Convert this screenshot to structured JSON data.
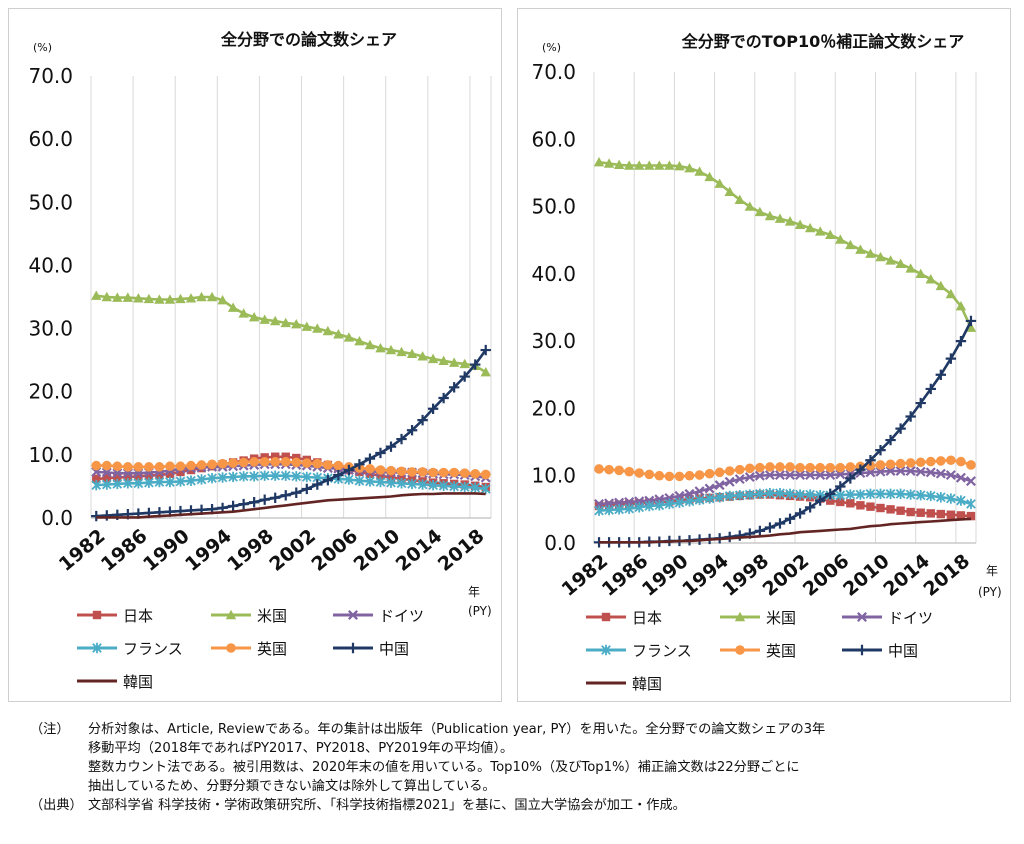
{
  "chart_data": [
    {
      "type": "line",
      "title": "全分野での論文数シェア",
      "unit_label": "(%)",
      "year_label": "年",
      "x_unit": "(PY)",
      "x": [
        1982,
        1983,
        1984,
        1985,
        1986,
        1987,
        1988,
        1989,
        1990,
        1991,
        1992,
        1993,
        1994,
        1995,
        1996,
        1997,
        1998,
        1999,
        2000,
        2001,
        2002,
        2003,
        2004,
        2005,
        2006,
        2007,
        2008,
        2009,
        2010,
        2011,
        2012,
        2013,
        2014,
        2015,
        2016,
        2017,
        2018,
        2019
      ],
      "xticks": [
        1982,
        1986,
        1990,
        1994,
        1998,
        2002,
        2006,
        2010,
        2014,
        2018
      ],
      "ylim": [
        0,
        70
      ],
      "yticks": [
        "0.0",
        "10.0",
        "20.0",
        "30.0",
        "40.0",
        "50.0",
        "60.0",
        "70.0"
      ],
      "grid": "vertical",
      "legend_position": "bottom",
      "series": [
        {
          "name": "日本",
          "color": "#c0504d",
          "marker": "square",
          "values": [
            6.2,
            6.3,
            6.4,
            6.5,
            6.6,
            6.7,
            6.8,
            7.0,
            7.3,
            7.6,
            7.9,
            8.2,
            8.5,
            8.8,
            9.1,
            9.4,
            9.6,
            9.7,
            9.7,
            9.5,
            9.2,
            8.8,
            8.4,
            8.0,
            7.6,
            7.3,
            7.0,
            6.7,
            6.4,
            6.2,
            6.0,
            5.8,
            5.6,
            5.5,
            5.4,
            5.3,
            5.1,
            4.9
          ]
        },
        {
          "name": "米国",
          "color": "#9bbb59",
          "marker": "triangle",
          "values": [
            35.2,
            35.0,
            34.9,
            34.9,
            34.8,
            34.7,
            34.6,
            34.6,
            34.7,
            34.8,
            35.0,
            35.0,
            34.5,
            33.3,
            32.4,
            31.8,
            31.4,
            31.2,
            30.9,
            30.7,
            30.3,
            30.0,
            29.6,
            29.1,
            28.6,
            28.0,
            27.4,
            26.9,
            26.6,
            26.3,
            26.0,
            25.6,
            25.2,
            24.9,
            24.6,
            24.4,
            24.1,
            23.1
          ]
        },
        {
          "name": "ドイツ",
          "color": "#8064a2",
          "marker": "x",
          "values": [
            7.3,
            7.2,
            7.1,
            7.1,
            7.1,
            7.2,
            7.3,
            7.5,
            7.8,
            7.9,
            8.0,
            8.1,
            8.1,
            8.2,
            8.3,
            8.4,
            8.5,
            8.5,
            8.5,
            8.4,
            8.3,
            8.1,
            7.9,
            7.8,
            7.6,
            7.5,
            7.4,
            7.3,
            7.2,
            7.2,
            7.2,
            7.1,
            7.0,
            6.9,
            6.9,
            6.8,
            6.6,
            6.4
          ]
        },
        {
          "name": "フランス",
          "color": "#4bacc6",
          "marker": "asterisk",
          "values": [
            5.2,
            5.3,
            5.4,
            5.5,
            5.5,
            5.6,
            5.7,
            5.7,
            5.8,
            5.9,
            6.1,
            6.3,
            6.4,
            6.5,
            6.6,
            6.6,
            6.7,
            6.7,
            6.7,
            6.6,
            6.5,
            6.4,
            6.3,
            6.2,
            6.1,
            5.9,
            5.8,
            5.7,
            5.6,
            5.5,
            5.4,
            5.3,
            5.2,
            5.1,
            5.0,
            4.9,
            4.8,
            4.6
          ]
        },
        {
          "name": "英国",
          "color": "#f79646",
          "marker": "circle",
          "values": [
            8.3,
            8.3,
            8.2,
            8.1,
            8.1,
            8.1,
            8.1,
            8.2,
            8.2,
            8.3,
            8.4,
            8.5,
            8.6,
            8.7,
            8.8,
            8.9,
            8.9,
            8.9,
            8.9,
            8.8,
            8.7,
            8.6,
            8.4,
            8.3,
            8.1,
            7.9,
            7.8,
            7.6,
            7.5,
            7.4,
            7.3,
            7.3,
            7.2,
            7.2,
            7.2,
            7.1,
            7.0,
            6.9
          ]
        },
        {
          "name": "中国",
          "color": "#1f3864",
          "marker": "plus",
          "values": [
            0.3,
            0.4,
            0.5,
            0.6,
            0.7,
            0.8,
            0.9,
            1.0,
            1.1,
            1.2,
            1.3,
            1.4,
            1.6,
            1.9,
            2.2,
            2.5,
            2.9,
            3.2,
            3.6,
            4.0,
            4.6,
            5.3,
            6.0,
            6.8,
            7.6,
            8.5,
            9.4,
            10.3,
            11.3,
            12.5,
            13.9,
            15.5,
            17.3,
            19.0,
            20.7,
            22.4,
            24.3,
            26.6
          ]
        },
        {
          "name": "韓国",
          "color": "#632523",
          "marker": "none",
          "values": [
            0.1,
            0.1,
            0.1,
            0.1,
            0.1,
            0.2,
            0.3,
            0.4,
            0.5,
            0.6,
            0.7,
            0.8,
            0.9,
            1.0,
            1.2,
            1.4,
            1.6,
            1.8,
            2.0,
            2.2,
            2.4,
            2.6,
            2.8,
            2.9,
            3.0,
            3.1,
            3.2,
            3.3,
            3.4,
            3.6,
            3.7,
            3.8,
            3.8,
            3.9,
            3.9,
            3.9,
            3.9,
            3.8
          ]
        }
      ]
    },
    {
      "type": "line",
      "title": "全分野でのTOP10％補正論文数シェア",
      "unit_label": "(%)",
      "year_label": "年",
      "x_unit": "(PY)",
      "x": [
        1982,
        1983,
        1984,
        1985,
        1986,
        1987,
        1988,
        1989,
        1990,
        1991,
        1992,
        1993,
        1994,
        1995,
        1996,
        1997,
        1998,
        1999,
        2000,
        2001,
        2002,
        2003,
        2004,
        2005,
        2006,
        2007,
        2008,
        2009,
        2010,
        2011,
        2012,
        2013,
        2014,
        2015,
        2016,
        2017,
        2018,
        2019
      ],
      "xticks": [
        1982,
        1986,
        1990,
        1994,
        1998,
        2002,
        2006,
        2010,
        2014,
        2018
      ],
      "ylim": [
        0,
        70
      ],
      "yticks": [
        "0.0",
        "10.0",
        "20.0",
        "30.0",
        "40.0",
        "50.0",
        "60.0",
        "70.0"
      ],
      "grid": "vertical",
      "legend_position": "bottom",
      "series": [
        {
          "name": "日本",
          "color": "#c0504d",
          "marker": "square",
          "values": [
            5.5,
            5.6,
            5.7,
            5.8,
            5.9,
            6.0,
            6.1,
            6.2,
            6.4,
            6.5,
            6.6,
            6.7,
            6.8,
            6.9,
            7.0,
            7.1,
            7.2,
            7.2,
            7.1,
            7.0,
            6.9,
            6.8,
            6.6,
            6.3,
            6.1,
            5.9,
            5.6,
            5.4,
            5.2,
            5.0,
            4.8,
            4.6,
            4.5,
            4.4,
            4.3,
            4.2,
            4.1,
            4.0
          ]
        },
        {
          "name": "米国",
          "color": "#9bbb59",
          "marker": "triangle",
          "values": [
            56.6,
            56.4,
            56.2,
            56.1,
            56.1,
            56.1,
            56.1,
            56.1,
            56.0,
            55.7,
            55.2,
            54.4,
            53.4,
            52.2,
            51.0,
            50.0,
            49.2,
            48.6,
            48.2,
            47.8,
            47.3,
            46.8,
            46.3,
            45.8,
            45.1,
            44.3,
            43.6,
            43.0,
            42.5,
            42.0,
            41.5,
            40.8,
            40.0,
            39.2,
            38.2,
            37.0,
            35.2,
            32.0
          ]
        },
        {
          "name": "ドイツ",
          "color": "#8064a2",
          "marker": "x",
          "values": [
            5.8,
            5.9,
            6.0,
            6.1,
            6.2,
            6.3,
            6.5,
            6.7,
            7.0,
            7.3,
            7.7,
            8.1,
            8.6,
            9.1,
            9.5,
            9.8,
            10.0,
            10.1,
            10.1,
            10.1,
            10.1,
            10.1,
            10.1,
            10.1,
            10.2,
            10.3,
            10.4,
            10.5,
            10.6,
            10.7,
            10.7,
            10.7,
            10.6,
            10.5,
            10.3,
            10.1,
            9.7,
            9.2
          ]
        },
        {
          "name": "フランス",
          "color": "#4bacc6",
          "marker": "asterisk",
          "values": [
            4.8,
            4.9,
            5.0,
            5.1,
            5.3,
            5.5,
            5.6,
            5.8,
            6.0,
            6.2,
            6.4,
            6.6,
            6.8,
            7.0,
            7.1,
            7.2,
            7.3,
            7.4,
            7.4,
            7.3,
            7.2,
            7.2,
            7.1,
            7.1,
            7.1,
            7.2,
            7.2,
            7.3,
            7.3,
            7.3,
            7.3,
            7.2,
            7.1,
            7.0,
            6.8,
            6.6,
            6.3,
            5.8
          ]
        },
        {
          "name": "英国",
          "color": "#f79646",
          "marker": "circle",
          "values": [
            11.0,
            10.9,
            10.8,
            10.6,
            10.4,
            10.2,
            10.0,
            9.9,
            9.9,
            10.0,
            10.1,
            10.3,
            10.5,
            10.7,
            10.9,
            11.1,
            11.2,
            11.3,
            11.3,
            11.3,
            11.2,
            11.2,
            11.2,
            11.2,
            11.2,
            11.3,
            11.4,
            11.5,
            11.6,
            11.7,
            11.8,
            11.9,
            12.0,
            12.1,
            12.2,
            12.3,
            12.1,
            11.6
          ]
        },
        {
          "name": "中国",
          "color": "#1f3864",
          "marker": "plus",
          "values": [
            0.1,
            0.1,
            0.1,
            0.1,
            0.1,
            0.2,
            0.2,
            0.3,
            0.3,
            0.4,
            0.5,
            0.6,
            0.7,
            0.9,
            1.1,
            1.4,
            1.8,
            2.3,
            2.9,
            3.6,
            4.4,
            5.3,
            6.3,
            7.3,
            8.4,
            9.6,
            10.9,
            12.3,
            13.8,
            15.3,
            17.0,
            18.8,
            20.8,
            22.9,
            25.0,
            27.4,
            30.0,
            33.0
          ]
        },
        {
          "name": "韓国",
          "color": "#632523",
          "marker": "none",
          "values": [
            0.1,
            0.1,
            0.1,
            0.1,
            0.1,
            0.1,
            0.2,
            0.2,
            0.3,
            0.3,
            0.4,
            0.5,
            0.6,
            0.7,
            0.8,
            0.9,
            1.0,
            1.1,
            1.3,
            1.4,
            1.6,
            1.7,
            1.8,
            1.9,
            2.0,
            2.1,
            2.3,
            2.5,
            2.6,
            2.8,
            2.9,
            3.0,
            3.1,
            3.2,
            3.3,
            3.4,
            3.5,
            3.6
          ]
        }
      ]
    }
  ],
  "notes": {
    "note_label": "（注）",
    "note_line1": "分析対象は、Article, Reviewである。年の集計は出版年（Publication year, PY）を用いた。全分野での論文数シェアの3年",
    "note_line2": "移動平均（2018年であればPY2017、PY2018、PY2019年の平均値）。",
    "note_line3": "整数カウント法である。被引用数は、2020年末の値を用いている。Top10%（及びTop1%）補正論文数は22分野ごとに",
    "note_line4": "抽出しているため、分野分類できない論文は除外して算出している。",
    "source_label": "（出典）",
    "source_text": "文部科学省 科学技術・学術政策研究所、「科学技術指標2021」を基に、国立大学協会が加工・作成。"
  }
}
